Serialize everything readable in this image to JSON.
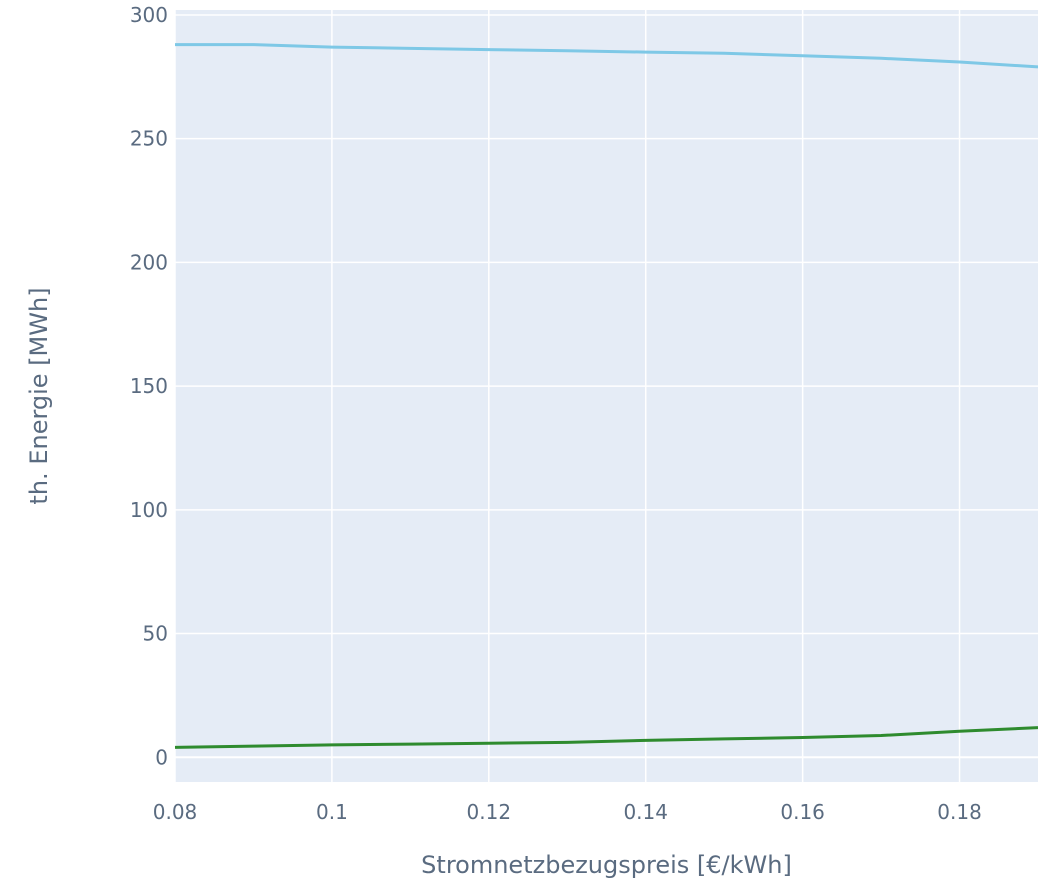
{
  "chart_data": {
    "type": "line",
    "title": "",
    "xlabel": "Stromnetzbezugspreis [€/kWh]",
    "ylabel": "th. Energie [MWh]",
    "xlim": [
      0.08,
      0.19
    ],
    "ylim": [
      -10,
      302
    ],
    "x_ticks": [
      0.08,
      0.1,
      0.12,
      0.14,
      0.16,
      0.18
    ],
    "x_tick_labels": [
      "0.08",
      "0.1",
      "0.12",
      "0.14",
      "0.16",
      "0.18"
    ],
    "y_ticks": [
      0,
      50,
      100,
      150,
      200,
      250,
      300
    ],
    "y_tick_labels": [
      "0",
      "50",
      "100",
      "150",
      "200",
      "250",
      "300"
    ],
    "grid": true,
    "plot_background": "#e5ecf6",
    "grid_color": "#ffffff",
    "legend": "none",
    "series": [
      {
        "color": "#7ec8e6",
        "x": [
          0.08,
          0.09,
          0.1,
          0.11,
          0.12,
          0.13,
          0.14,
          0.15,
          0.16,
          0.17,
          0.18,
          0.19
        ],
        "y": [
          288,
          288,
          287,
          286.5,
          286,
          285.5,
          285,
          284.5,
          283.5,
          282.5,
          281,
          279
        ]
      },
      {
        "color": "#2e8b2e",
        "x": [
          0.08,
          0.09,
          0.1,
          0.11,
          0.12,
          0.13,
          0.14,
          0.15,
          0.16,
          0.17,
          0.18,
          0.19
        ],
        "y": [
          4,
          4.5,
          5,
          5.3,
          5.7,
          6,
          6.8,
          7.4,
          8,
          8.8,
          10.5,
          12
        ]
      }
    ]
  }
}
